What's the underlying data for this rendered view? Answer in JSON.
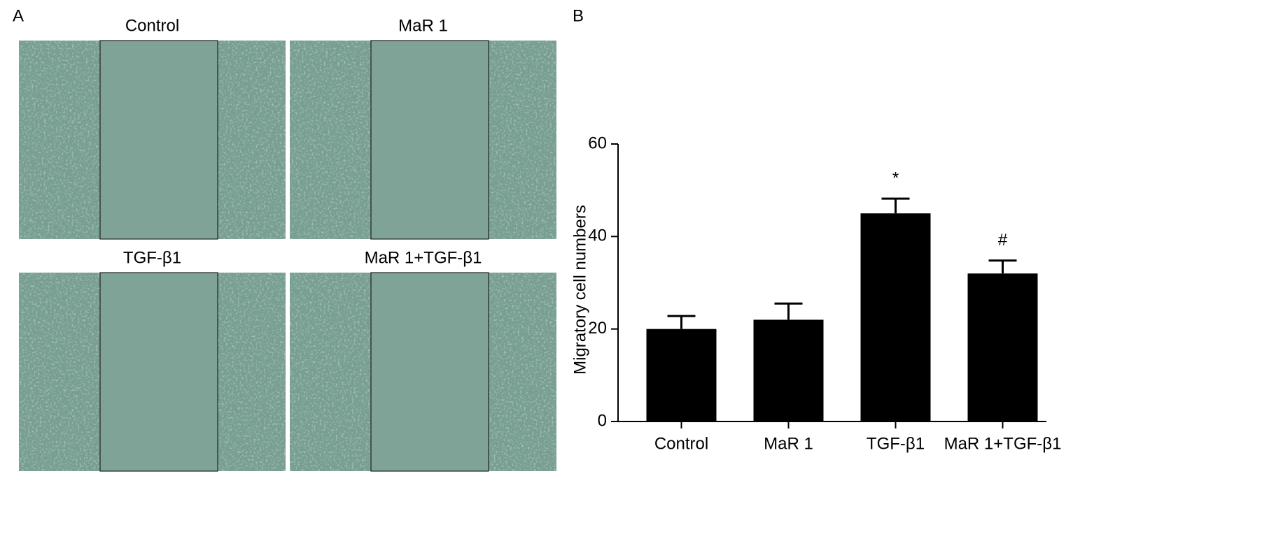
{
  "panel_labels": [
    "A",
    "B"
  ],
  "images": [
    {
      "title": "Control"
    },
    {
      "title": "MaR 1"
    },
    {
      "title": "TGF-β1"
    },
    {
      "title": "MaR 1+TGF-β1"
    }
  ],
  "chart_data": {
    "type": "bar",
    "categories": [
      "Control",
      "MaR 1",
      "TGF-β1",
      "MaR 1+TGF-β1"
    ],
    "values": [
      20,
      22,
      45,
      32
    ],
    "errors": [
      2.8,
      3.5,
      3.2,
      2.8
    ],
    "annotations": [
      null,
      null,
      "*",
      "#"
    ],
    "color": "#000000",
    "y_label": "Migratory cell numbers",
    "ylim": [
      0,
      60
    ],
    "yticks": [
      0,
      20,
      40,
      60
    ]
  }
}
